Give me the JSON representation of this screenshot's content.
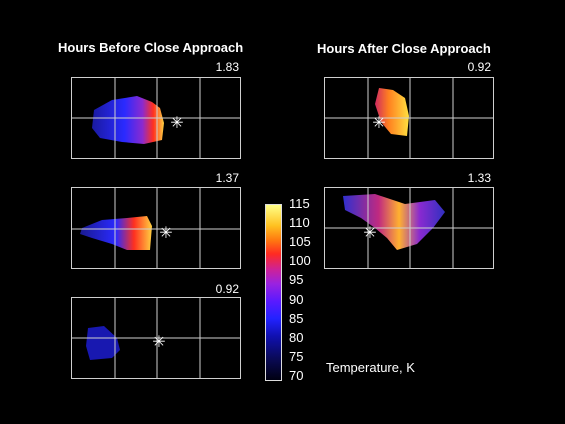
{
  "headings": {
    "before": "Hours Before Close Approach",
    "after": "Hours After Close Approach"
  },
  "panels": {
    "before_1": "1.83",
    "before_2": "1.37",
    "before_3": "0.92",
    "after_1": "0.92",
    "after_2": "1.33"
  },
  "colorbar": {
    "title": "Temperature, K",
    "ticks": [
      "115",
      "110",
      "105",
      "100",
      "95",
      "90",
      "85",
      "80",
      "75",
      "70"
    ]
  },
  "marker_icon": "asterisk-icon"
}
